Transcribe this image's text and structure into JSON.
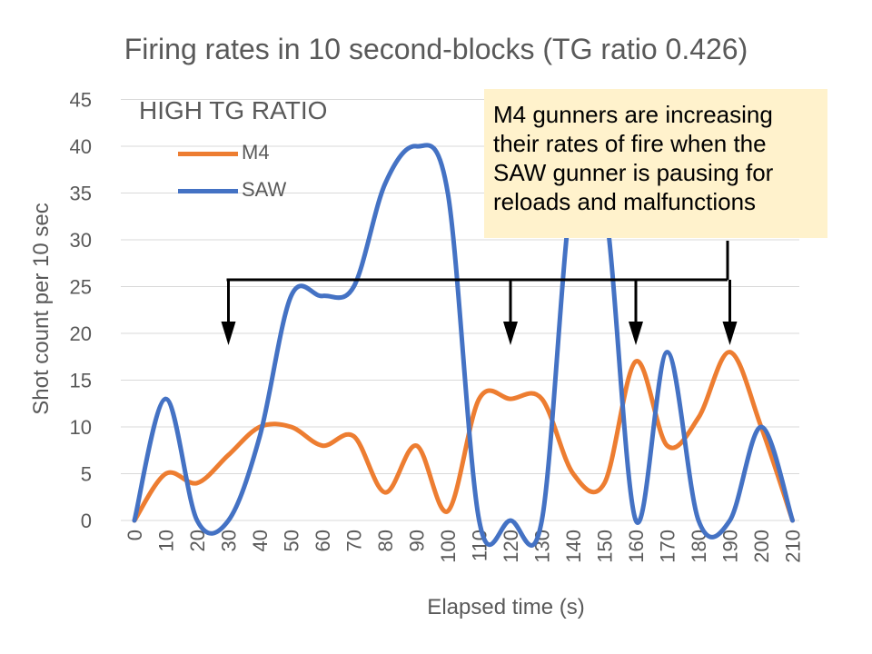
{
  "colors": {
    "m4": "#ED7D31",
    "saw": "#4472C4",
    "axis_text": "#595959",
    "grid": "#D9D9D9",
    "annotation_bg": "#FFF2CC"
  },
  "chart_data": {
    "type": "line",
    "title": "Firing rates in 10 second-blocks (TG ratio 0.426)",
    "subtitle_label": "HIGH TG RATIO",
    "xlabel": "Elapsed time (s)",
    "ylabel": "Shot count per 10 sec",
    "x": [
      0,
      10,
      20,
      30,
      40,
      50,
      60,
      70,
      80,
      90,
      100,
      110,
      120,
      130,
      140,
      150,
      160,
      170,
      180,
      190,
      200,
      210
    ],
    "x_tick_labels": [
      "0",
      "10",
      "20",
      "30",
      "40",
      "50",
      "60",
      "70",
      "80",
      "90",
      "100",
      "110",
      "120",
      "130",
      "140",
      "150",
      "160",
      "170",
      "180",
      "190",
      "200",
      "210"
    ],
    "y_tick_labels": [
      "0",
      "5",
      "10",
      "15",
      "20",
      "25",
      "30",
      "35",
      "40",
      "45"
    ],
    "ylim": [
      0,
      45
    ],
    "grid": true,
    "legend_position": "top-left",
    "series": [
      {
        "name": "M4",
        "values": [
          0,
          5,
          4,
          7,
          10,
          10,
          8,
          9,
          3,
          8,
          1,
          13,
          13,
          13,
          5,
          4,
          17,
          8,
          11,
          18,
          10,
          0
        ]
      },
      {
        "name": "SAW",
        "values": [
          0,
          13,
          0,
          0,
          9,
          24,
          24,
          25,
          36,
          40,
          35,
          0,
          0,
          0,
          36,
          34,
          0,
          18,
          0,
          0,
          10,
          0
        ]
      }
    ],
    "annotation": "M4 gunners are increasing their rates of fire when the SAW gunner is pausing for reloads and malfunctions",
    "arrow_targets_x": [
      30,
      120,
      160,
      190
    ]
  }
}
